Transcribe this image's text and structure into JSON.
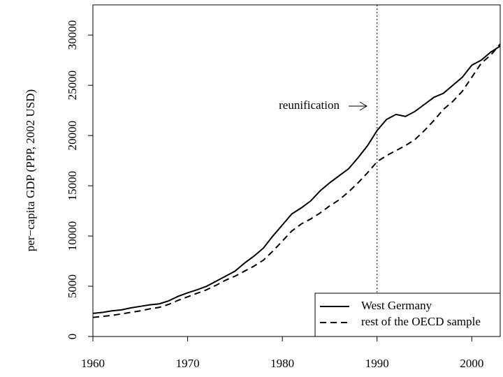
{
  "chart_data": {
    "type": "line",
    "ylabel": "per−capita GDP (PPP, 2002 USD)",
    "annotation": "reunification",
    "vline": 1990,
    "x": [
      1960,
      1961,
      1962,
      1963,
      1964,
      1965,
      1966,
      1967,
      1968,
      1969,
      1970,
      1971,
      1972,
      1973,
      1974,
      1975,
      1976,
      1977,
      1978,
      1979,
      1980,
      1981,
      1982,
      1983,
      1984,
      1985,
      1986,
      1987,
      1988,
      1989,
      1990,
      1991,
      1992,
      1993,
      1994,
      1995,
      1996,
      1997,
      1998,
      1999,
      2000,
      2001,
      2002,
      2003
    ],
    "series": [
      {
        "name": "West Germany",
        "color": "#000000",
        "line_style": "solid",
        "values": [
          2300,
          2400,
          2550,
          2650,
          2850,
          3000,
          3150,
          3250,
          3550,
          4000,
          4350,
          4650,
          5000,
          5500,
          6000,
          6500,
          7300,
          8000,
          8800,
          10000,
          11100,
          12200,
          12800,
          13500,
          14500,
          15300,
          16000,
          16700,
          17800,
          19000,
          20500,
          21600,
          22100,
          21900,
          22400,
          23100,
          23800,
          24200,
          25000,
          25800,
          27000,
          27500,
          28300,
          28900
        ]
      },
      {
        "name": "rest of the OECD sample",
        "color": "#000000",
        "line_style": "dashed",
        "values": [
          1900,
          2000,
          2100,
          2250,
          2400,
          2550,
          2750,
          2900,
          3200,
          3600,
          3950,
          4300,
          4650,
          5100,
          5600,
          6000,
          6500,
          7000,
          7600,
          8500,
          9500,
          10500,
          11200,
          11700,
          12300,
          13000,
          13600,
          14400,
          15300,
          16300,
          17400,
          18000,
          18500,
          19000,
          19600,
          20500,
          21500,
          22600,
          23400,
          24400,
          25800,
          27200,
          28000,
          29100
        ]
      }
    ],
    "xlim": [
      1960,
      2003
    ],
    "xticks": [
      1960,
      1970,
      1980,
      1990,
      2000
    ],
    "ylim": [
      0,
      33000
    ],
    "yticks": [
      0,
      5000,
      10000,
      15000,
      20000,
      25000,
      30000
    ],
    "legend": "bottom right"
  }
}
